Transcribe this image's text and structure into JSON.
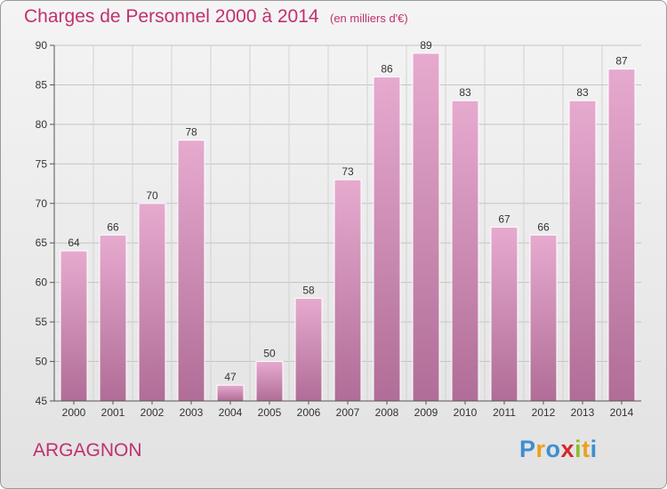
{
  "title": "Charges de Personnel 2000 à 2014",
  "unit": "(en milliers d'€)",
  "commune": "ARGAGNON",
  "logo": {
    "letters": [
      "P",
      "r",
      "o",
      "x",
      "i",
      "t",
      "i"
    ],
    "colors": [
      "#3e8ed0",
      "#e9a11a",
      "#3e8ed0",
      "#d6262c",
      "#8cbf2c",
      "#e9a11a",
      "#3e8ed0"
    ]
  },
  "colors": {
    "bar_top": "#e7aacf",
    "bar_bottom": "#b06d97",
    "title": "#c1306f"
  },
  "chart_data": {
    "type": "bar",
    "categories": [
      "2000",
      "2001",
      "2002",
      "2003",
      "2004",
      "2005",
      "2006",
      "2007",
      "2008",
      "2009",
      "2010",
      "2011",
      "2012",
      "2013",
      "2014"
    ],
    "values": [
      64,
      66,
      70,
      78,
      47,
      50,
      58,
      73,
      86,
      89,
      83,
      67,
      66,
      83,
      87
    ],
    "ylim": [
      45,
      90
    ],
    "yticks": [
      45,
      50,
      55,
      60,
      65,
      70,
      75,
      80,
      85,
      90
    ],
    "grid": true,
    "title": "Charges de Personnel 2000 à 2014",
    "xlabel": "",
    "ylabel": ""
  }
}
